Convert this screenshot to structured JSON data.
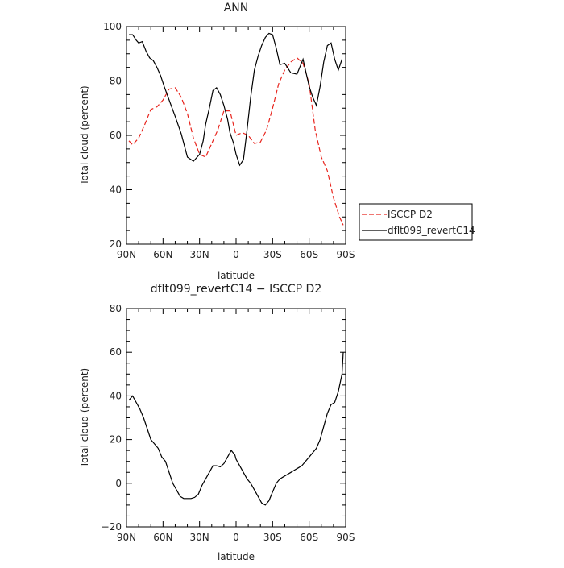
{
  "chart_data": [
    {
      "type": "line",
      "title": "ANN",
      "xlabel": "latitude",
      "ylabel": "Total cloud (percent)",
      "ylim": [
        20,
        100
      ],
      "xlim": [
        90,
        -90
      ],
      "x_ticks": [
        90,
        60,
        30,
        0,
        -30,
        -60,
        -90
      ],
      "x_tick_labels": [
        "90N",
        "60N",
        "30N",
        "0",
        "30S",
        "60S",
        "90S"
      ],
      "y_ticks": [
        20,
        40,
        60,
        80,
        100
      ],
      "y_tick_labels": [
        "20",
        "40",
        "60",
        "80",
        "100"
      ],
      "legend_position": "outside-right",
      "series": [
        {
          "name": "ISCCP D2",
          "color": "#e8251e",
          "dash": "dashed",
          "x": [
            88,
            85,
            80,
            75,
            70,
            65,
            60,
            55,
            50,
            45,
            40,
            35,
            30,
            25,
            20,
            15,
            10,
            5,
            0,
            -5,
            -10,
            -15,
            -20,
            -25,
            -30,
            -35,
            -40,
            -45,
            -50,
            -55,
            -60,
            -65,
            -70,
            -75,
            -80,
            -85,
            -88
          ],
          "y": [
            58,
            56.5,
            59,
            64,
            69.5,
            70.5,
            73,
            77,
            77.5,
            74,
            68,
            59,
            53,
            52,
            57,
            62,
            69,
            69,
            60,
            61,
            60,
            57,
            57.5,
            62,
            70,
            79,
            84,
            87,
            88.5,
            86.5,
            79,
            62,
            52,
            47,
            37,
            30,
            27
          ]
        },
        {
          "name": "dflt099_revertC14",
          "color": "#000000",
          "dash": "solid",
          "x": [
            88,
            85,
            82,
            80,
            77,
            74,
            71,
            68,
            65,
            62,
            59,
            55,
            50,
            45,
            40,
            35,
            30,
            27,
            25,
            22,
            19,
            16,
            13,
            10,
            7,
            5,
            2,
            0,
            -3,
            -6,
            -9,
            -12,
            -15,
            -18,
            -21,
            -24,
            -27,
            -30,
            -33,
            -36,
            -40,
            -45,
            -50,
            -55,
            -60,
            -63,
            -66,
            -69,
            -72,
            -75,
            -78,
            -81,
            -84,
            -87
          ],
          "y": [
            97,
            97,
            95,
            94,
            94.5,
            91,
            88.5,
            87.5,
            85,
            82,
            78,
            73,
            67,
            60.5,
            52,
            50.5,
            53,
            58,
            64,
            70,
            76.5,
            77.5,
            75,
            71,
            66,
            61,
            57,
            53,
            49,
            51,
            62,
            74,
            84,
            89,
            93,
            96,
            97.5,
            97,
            92,
            86,
            86.5,
            83,
            82.5,
            88,
            78,
            74,
            71,
            78,
            87,
            93,
            94,
            88,
            84,
            88
          ]
        }
      ]
    },
    {
      "type": "line",
      "title": "dflt099_revertC14 − ISCCP D2",
      "xlabel": "latitude",
      "ylabel": "Total cloud (percent)",
      "ylim": [
        -20,
        80
      ],
      "xlim": [
        90,
        -90
      ],
      "x_ticks": [
        90,
        60,
        30,
        0,
        -30,
        -60,
        -90
      ],
      "x_tick_labels": [
        "90N",
        "60N",
        "30N",
        "0",
        "30S",
        "60S",
        "90S"
      ],
      "y_ticks": [
        -20,
        0,
        20,
        40,
        60,
        80
      ],
      "y_tick_labels": [
        "−20",
        "0",
        "20",
        "40",
        "60",
        "80"
      ],
      "series": [
        {
          "color": "#000000",
          "dash": "solid",
          "x": [
            88,
            85,
            82,
            79,
            76,
            73,
            70,
            67,
            64,
            61,
            58,
            55,
            52,
            49,
            46,
            43,
            40,
            37,
            34,
            31,
            28,
            25,
            22,
            19,
            16,
            13,
            10,
            7,
            4,
            1,
            0,
            -3,
            -6,
            -9,
            -12,
            -15,
            -18,
            -21,
            -24,
            -27,
            -30,
            -33,
            -36,
            -39,
            -42,
            -45,
            -48,
            -51,
            -54,
            -57,
            -60,
            -63,
            -66,
            -69,
            -72,
            -75,
            -78,
            -81,
            -84,
            -87,
            -88
          ],
          "y": [
            38,
            40,
            37,
            34,
            30,
            25,
            20,
            18,
            16,
            12,
            10,
            5,
            0,
            -3,
            -6,
            -7,
            -7,
            -7,
            -6.5,
            -5,
            -1,
            2,
            5,
            8,
            8,
            7.5,
            9,
            12,
            15,
            13,
            11,
            8,
            5,
            2,
            0,
            -3,
            -6,
            -9,
            -10,
            -8,
            -4,
            0,
            2,
            3,
            4,
            5,
            6,
            7,
            8,
            10,
            12,
            14,
            16,
            20,
            26,
            32,
            36,
            37,
            42,
            50,
            60
          ]
        }
      ]
    }
  ]
}
